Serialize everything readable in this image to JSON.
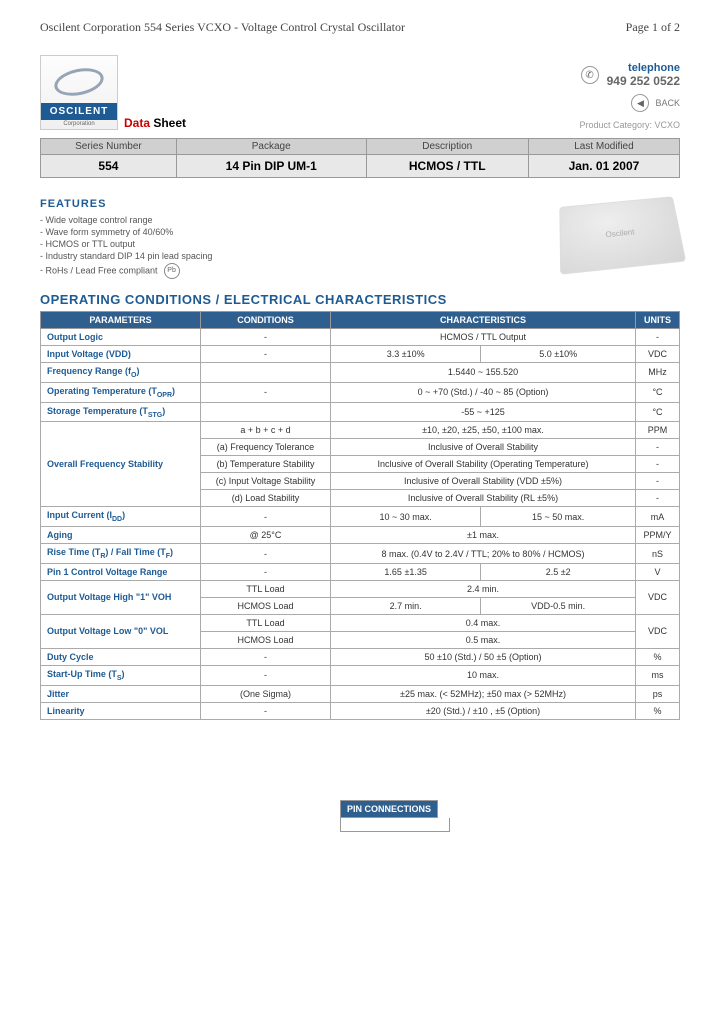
{
  "header": {
    "left": "Oscilent Corporation   554 Series VCXO - Voltage Control Crystal Oscillator",
    "right": "Page 1 of 2"
  },
  "logo": {
    "brand": "OSCILENT",
    "corp": "Corporation"
  },
  "datasheet": {
    "d": "Data",
    "s": " Sheet"
  },
  "contact": {
    "tel_label": "telephone",
    "tel_num": "949 252 0522",
    "back": "BACK",
    "prod_cat": "Product Category: VCXO"
  },
  "info": {
    "headers": [
      "Series Number",
      "Package",
      "Description",
      "Last Modified"
    ],
    "values": [
      "554",
      "14 Pin DIP UM-1",
      "HCMOS / TTL",
      "Jan. 01 2007"
    ]
  },
  "features": {
    "title": "FEATURES",
    "items": [
      "Wide voltage control range",
      "Wave form symmetry of 40/60%",
      "HCMOS or TTL output",
      "Industry standard DIP 14 pin lead spacing",
      "RoHs / Lead Free compliant"
    ],
    "pb": "Pb"
  },
  "section_title": "OPERATING CONDITIONS / ELECTRICAL CHARACTERISTICS",
  "spec_headers": {
    "param": "PARAMETERS",
    "cond": "CONDITIONS",
    "char": "CHARACTERISTICS",
    "unit": "UNITS"
  },
  "specs": [
    {
      "param": "Output Logic",
      "cond": "-",
      "char": [
        "HCMOS / TTL Output"
      ],
      "unit": "-"
    },
    {
      "param": "Input Voltage (VDD)",
      "cond": "-",
      "char": [
        "3.3 ±10%",
        "5.0 ±10%"
      ],
      "unit": "VDC"
    },
    {
      "param": "Frequency Range (f<sub>O</sub>)",
      "cond": "",
      "char": [
        "1.5440 ~ 155.520"
      ],
      "unit": "MHz"
    },
    {
      "param": "Operating Temperature (T<sub>OPR</sub>)",
      "cond": "-",
      "char": [
        "0 ~ +70 (Std.) / -40 ~ 85 (Option)"
      ],
      "unit": "°C"
    },
    {
      "param": "Storage Temperature (T<sub>STG</sub>)",
      "cond": "",
      "char": [
        "-55 ~ +125"
      ],
      "unit": "°C"
    },
    {
      "param": "Overall Frequency Stability",
      "rows": [
        {
          "cond": "a + b + c + d",
          "char": "±10, ±20, ±25, ±50, ±100 max.",
          "unit": "PPM"
        },
        {
          "cond": "(a) Frequency Tolerance",
          "char": "Inclusive of Overall Stability",
          "unit": "-"
        },
        {
          "cond": "(b) Temperature Stability",
          "char": "Inclusive of Overall Stability (Operating Temperature)",
          "unit": "-"
        },
        {
          "cond": "(c) Input Voltage Stability",
          "char": "Inclusive of Overall Stability (VDD ±5%)",
          "unit": "-"
        },
        {
          "cond": "(d) Load Stability",
          "char": "Inclusive of Overall Stability (RL ±5%)",
          "unit": "-"
        }
      ]
    },
    {
      "param": "Input Current (I<sub>DD</sub>)",
      "cond": "-",
      "char": [
        "10 ~ 30 max.",
        "15 ~ 50 max."
      ],
      "unit": "mA"
    },
    {
      "param": "Aging",
      "cond": "@ 25°C",
      "char": [
        "±1 max."
      ],
      "unit": "PPM/Y"
    },
    {
      "param": "Rise Time (T<sub>R</sub>) / Fall Time (T<sub>F</sub>)",
      "cond": "-",
      "char": [
        "8 max. (0.4V to 2.4V / TTL; 20% to 80% / HCMOS)"
      ],
      "unit": "nS"
    },
    {
      "param": "Pin 1 Control Voltage Range",
      "cond": "-",
      "char": [
        "1.65 ±1.35",
        "2.5 ±2"
      ],
      "unit": "V"
    },
    {
      "param": "Output Voltage High \"1\" VOH",
      "rows": [
        {
          "cond": "TTL Load",
          "char": "2.4 min.",
          "unit_rowspan": "VDC"
        },
        {
          "cond": "HCMOS Load",
          "char2": [
            "2.7 min.",
            "VDD-0.5 min."
          ]
        }
      ]
    },
    {
      "param": "Output Voltage Low \"0\" VOL",
      "rows": [
        {
          "cond": "TTL Load",
          "char": "0.4 max.",
          "unit_rowspan": "VDC"
        },
        {
          "cond": "HCMOS Load",
          "char": "0.5 max."
        }
      ]
    },
    {
      "param": "Duty Cycle",
      "cond": "-",
      "char": [
        "50 ±10 (Std.) / 50 ±5 (Option)"
      ],
      "unit": "%"
    },
    {
      "param": "Start-Up Time (T<sub>S</sub>)",
      "cond": "-",
      "char": [
        "10 max."
      ],
      "unit": "ms"
    },
    {
      "param": "Jitter",
      "cond": "(One Sigma)",
      "char": [
        "±25 max. (< 52MHz); ±50 max (> 52MHz)"
      ],
      "unit": "ps"
    },
    {
      "param": "Linearity",
      "cond": "-",
      "char": [
        "±20 (Std.) / ±10 , ±5 (Option)"
      ],
      "unit": "%"
    }
  ],
  "pin_title": "PIN CONNECTIONS",
  "colors": {
    "brand_blue": "#1e5b94",
    "header_blue": "#2f5f8f",
    "grey_bg": "#e8e8e8",
    "grey_bg2": "#d0d0d0",
    "red": "#c00"
  }
}
